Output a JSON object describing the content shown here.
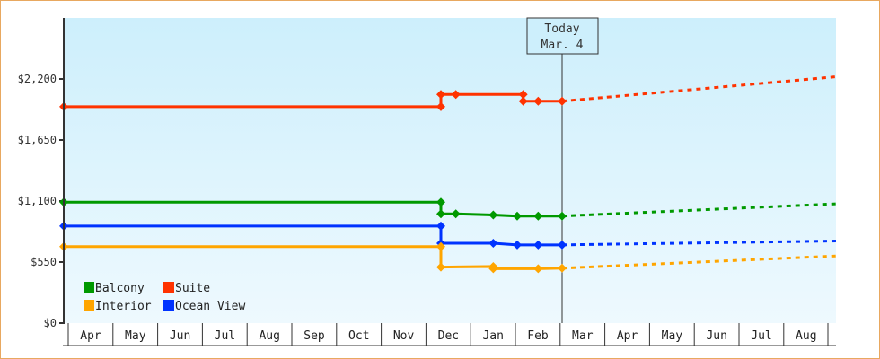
{
  "chart_data": {
    "type": "line",
    "title": "",
    "xlabel": "",
    "ylabel": "",
    "ylim": [
      0,
      2750
    ],
    "y_ticks": [
      {
        "value": 0,
        "label": "$0"
      },
      {
        "value": 550,
        "label": "$550"
      },
      {
        "value": 1100,
        "label": "$1,100"
      },
      {
        "value": 1650,
        "label": "$1,650"
      },
      {
        "value": 2200,
        "label": "$2,200"
      }
    ],
    "x_month_labels": [
      "Apr",
      "May",
      "Jun",
      "Jul",
      "Aug",
      "Sep",
      "Oct",
      "Nov",
      "Dec",
      "Jan",
      "Feb",
      "Mar",
      "Apr",
      "May",
      "Jun",
      "Jul",
      "Aug"
    ],
    "today_marker": {
      "line1": "Today",
      "line2": "Mar. 4"
    },
    "legend": [
      {
        "name": "Balcony",
        "color": "#009900"
      },
      {
        "name": "Suite",
        "color": "#ff3300"
      },
      {
        "name": "Interior",
        "color": "#ffa500"
      },
      {
        "name": "Ocean View",
        "color": "#0033ff"
      }
    ],
    "series": [
      {
        "name": "Suite",
        "color": "#ff3300",
        "history": [
          [
            "Apr 1",
            1950
          ],
          [
            "Dec 10",
            1950
          ],
          [
            "Dec 10",
            2060
          ],
          [
            "Dec 20",
            2060
          ],
          [
            "Feb 5",
            2060
          ],
          [
            "Feb 5",
            2000
          ],
          [
            "Feb 15",
            2000
          ],
          [
            "Mar 4",
            2000
          ]
        ],
        "forecast": [
          [
            "Mar 4",
            2000
          ],
          [
            "Aug 31",
            2220
          ]
        ]
      },
      {
        "name": "Balcony",
        "color": "#009900",
        "history": [
          [
            "Apr 1",
            1090
          ],
          [
            "Dec 10",
            1090
          ],
          [
            "Dec 10",
            985
          ],
          [
            "Dec 20",
            985
          ],
          [
            "Jan 15",
            975
          ],
          [
            "Feb 1",
            965
          ],
          [
            "Feb 15",
            965
          ],
          [
            "Mar 4",
            965
          ]
        ],
        "forecast": [
          [
            "Mar 4",
            965
          ],
          [
            "Aug 31",
            1075
          ]
        ]
      },
      {
        "name": "Ocean View",
        "color": "#0033ff",
        "history": [
          [
            "Apr 1",
            875
          ],
          [
            "Dec 10",
            875
          ],
          [
            "Dec 10",
            720
          ],
          [
            "Jan 15",
            720
          ],
          [
            "Feb 1",
            705
          ],
          [
            "Feb 15",
            705
          ],
          [
            "Mar 4",
            705
          ]
        ],
        "forecast": [
          [
            "Mar 4",
            705
          ],
          [
            "Aug 31",
            740
          ]
        ]
      },
      {
        "name": "Interior",
        "color": "#ffa500",
        "history": [
          [
            "Apr 1",
            690
          ],
          [
            "Dec 10",
            690
          ],
          [
            "Dec 10",
            505
          ],
          [
            "Jan 15",
            510
          ],
          [
            "Jan 15",
            490
          ],
          [
            "Feb 15",
            490
          ],
          [
            "Mar 4",
            495
          ]
        ],
        "forecast": [
          [
            "Mar 4",
            495
          ],
          [
            "Aug 31",
            605
          ]
        ]
      }
    ]
  }
}
